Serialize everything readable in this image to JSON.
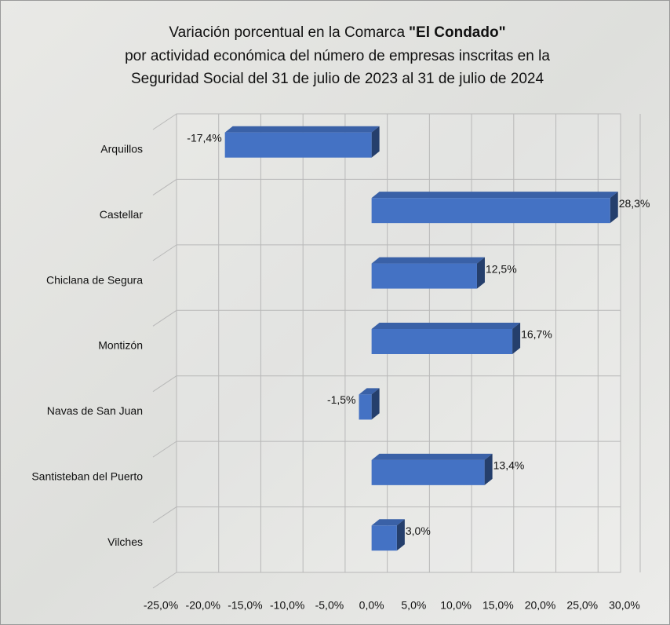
{
  "chart_data": {
    "type": "bar3d_horizontal",
    "title": [
      "Variación porcentual en la Comarca",
      "\"El Condado\"",
      "por actividad económica del número de empresas inscritas en la",
      "Seguridad Social del 31 de julio de 2023 al 31 de julio de 2024"
    ],
    "categories": [
      "Arquillos",
      "Castellar",
      "Chiclana de Segura",
      "Montizón",
      "Navas de San Juan",
      "Santisteban del Puerto",
      "Vilches"
    ],
    "values": [
      -17.4,
      28.3,
      12.5,
      16.7,
      -1.5,
      13.4,
      3.0
    ],
    "value_labels": [
      "-17,4%",
      "28,3%",
      "12,5%",
      "16,7%",
      "-1,5%",
      "13,4%",
      "3,0%"
    ],
    "color": "#4472c4",
    "xlim": [
      -25,
      30
    ],
    "xticks": [
      {
        "value": -25,
        "label": "-25,0%"
      },
      {
        "value": -20,
        "label": "-20,0%"
      },
      {
        "value": -15,
        "label": "-15,0%"
      },
      {
        "value": -10,
        "label": "-10,0%"
      },
      {
        "value": -5,
        "label": "-5,0%"
      },
      {
        "value": 0,
        "label": "0,0%"
      },
      {
        "value": 5,
        "label": "5,0%"
      },
      {
        "value": 10,
        "label": "10,0%"
      },
      {
        "value": 15,
        "label": "15,0%"
      },
      {
        "value": 20,
        "label": "20,0%"
      },
      {
        "value": 25,
        "label": "25,0%"
      },
      {
        "value": 30,
        "label": "30,0%"
      }
    ],
    "grid": true
  }
}
